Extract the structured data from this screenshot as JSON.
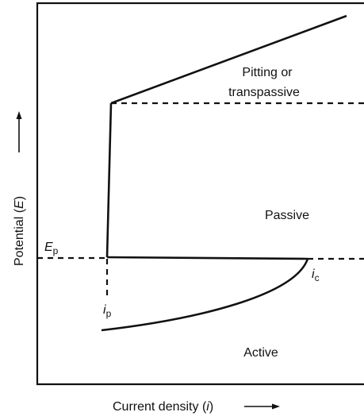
{
  "regions": {
    "pitting": [
      "Pitting or",
      "transpassive"
    ],
    "passive": "Passive",
    "active": "Active"
  },
  "points": {
    "ep": {
      "symbol": "E",
      "sub": "p"
    },
    "ic": {
      "symbol": "i",
      "sub": "c"
    },
    "ip": {
      "symbol": "i",
      "sub": "p"
    }
  },
  "y_axis": {
    "prefix": "Potential (",
    "symbol": "E",
    "suffix": ")"
  },
  "x_axis": {
    "prefix": "Current density (",
    "symbol": "i",
    "suffix": ")"
  }
}
